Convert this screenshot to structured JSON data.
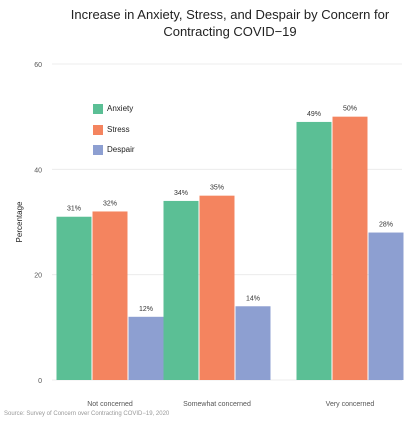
{
  "chart_data": {
    "type": "bar",
    "title": "Increase in Anxiety, Stress, and Despair by Concern for Contracting COVID−19",
    "xlabel": "",
    "ylabel": "Percentage",
    "ylim": [
      0,
      60
    ],
    "yticks": [
      "0",
      "20",
      "40",
      "60"
    ],
    "grid": true,
    "legend_position": "top-left",
    "categories": [
      "Not concerned",
      "Somewhat concerned",
      "Very concerned"
    ],
    "series": [
      {
        "name": "Anxiety",
        "color": "#5bbf95",
        "values": [
          31,
          34,
          49
        ],
        "labels": [
          "31%",
          "34%",
          "49%"
        ]
      },
      {
        "name": "Stress",
        "color": "#f4845f",
        "values": [
          32,
          35,
          50
        ],
        "labels": [
          "32%",
          "35%",
          "50%"
        ]
      },
      {
        "name": "Despair",
        "color": "#8d9fd1",
        "values": [
          12,
          14,
          28
        ],
        "labels": [
          "12%",
          "14%",
          "28%"
        ]
      }
    ]
  },
  "caption": "Source: Survey of Concern over Contracting COVID−19, 2020"
}
